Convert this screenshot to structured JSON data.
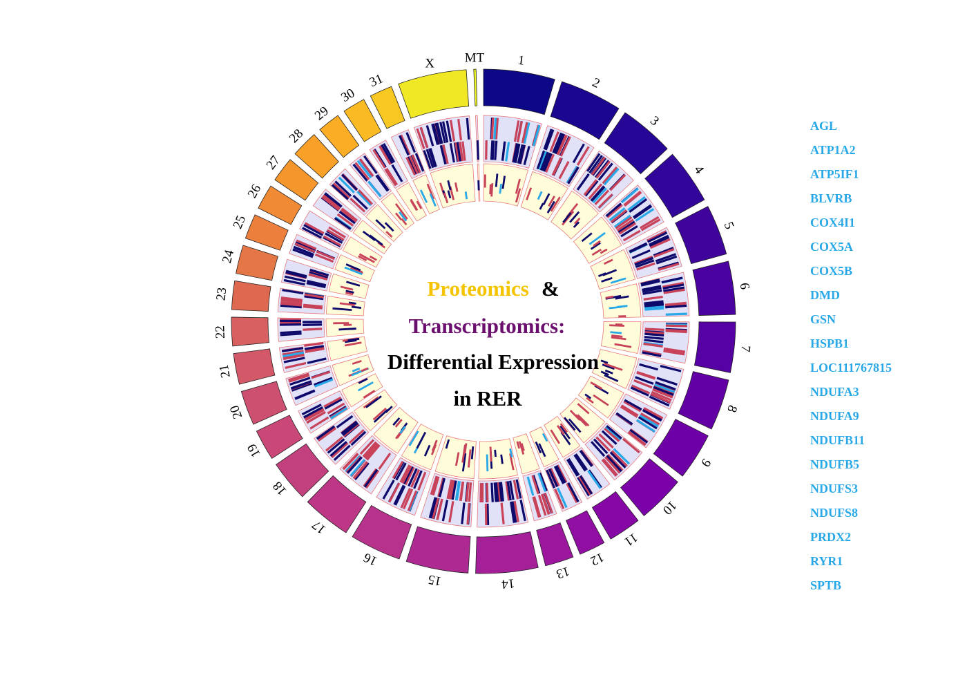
{
  "title": {
    "line1_part1": "Proteomics",
    "line1_part2": "&",
    "line2": "Transcriptomics:",
    "line3": "Differential Expression",
    "line4": "in RER",
    "colors": {
      "proteomics": "#f5c400",
      "amp": "#000000",
      "transcriptomics": "#6a0f6e",
      "rest": "#000000"
    }
  },
  "chart_data": {
    "type": "circos",
    "chromosomes": [
      {
        "name": "1",
        "size": 157,
        "color": "#0d0887"
      },
      {
        "name": "2",
        "size": 137,
        "color": "#1a0690"
      },
      {
        "name": "3",
        "size": 121,
        "color": "#260696"
      },
      {
        "name": "4",
        "size": 121,
        "color": "#32059b"
      },
      {
        "name": "5",
        "size": 111,
        "color": "#3e049c"
      },
      {
        "name": "6",
        "size": 117,
        "color": "#4a02a0"
      },
      {
        "name": "7",
        "size": 111,
        "color": "#5601a4"
      },
      {
        "name": "8",
        "size": 113,
        "color": "#6200a6"
      },
      {
        "name": "9",
        "size": 104,
        "color": "#6e00a8"
      },
      {
        "name": "10",
        "size": 104,
        "color": "#7a02a8"
      },
      {
        "name": "11",
        "size": 72,
        "color": "#8606a6"
      },
      {
        "name": "12",
        "size": 58,
        "color": "#910ea3"
      },
      {
        "name": "13",
        "size": 63,
        "color": "#9c179e"
      },
      {
        "name": "14",
        "size": 137,
        "color": "#a51f99"
      },
      {
        "name": "15",
        "size": 137,
        "color": "#ae2992"
      },
      {
        "name": "16",
        "size": 113,
        "color": "#b6328b"
      },
      {
        "name": "17",
        "size": 107,
        "color": "#bd3786"
      },
      {
        "name": "18",
        "size": 90,
        "color": "#c3407f"
      },
      {
        "name": "19",
        "size": 68,
        "color": "#c94878"
      },
      {
        "name": "20",
        "size": 76,
        "color": "#cd5070"
      },
      {
        "name": "21",
        "size": 68,
        "color": "#d35868"
      },
      {
        "name": "22",
        "size": 63,
        "color": "#d86060"
      },
      {
        "name": "23",
        "size": 63,
        "color": "#df6950"
      },
      {
        "name": "24",
        "size": 63,
        "color": "#e57645"
      },
      {
        "name": "25",
        "size": 55,
        "color": "#ec7f3c"
      },
      {
        "name": "26",
        "size": 55,
        "color": "#f08a35"
      },
      {
        "name": "27",
        "size": 55,
        "color": "#f5962c"
      },
      {
        "name": "28",
        "size": 59,
        "color": "#f8a027"
      },
      {
        "name": "29",
        "size": 50,
        "color": "#faad25"
      },
      {
        "name": "30",
        "size": 50,
        "color": "#f9ba23"
      },
      {
        "name": "31",
        "size": 50,
        "color": "#f7c822"
      },
      {
        "name": "X",
        "size": 151,
        "color": "#f0e824"
      },
      {
        "name": "MT",
        "size": 5,
        "color": "#f0f921"
      }
    ],
    "tracks": [
      {
        "name": "",
        "background": "#e1e1f7",
        "border": "#e8787a"
      },
      {
        "name": "",
        "background": "#fffdd9",
        "border": "#e8787a"
      }
    ],
    "mark_colors": {
      "down": "#0d0a6b",
      "up": "#c8435a",
      "highlight": "#29a8e8"
    },
    "legend_genes": [
      "AGL",
      "ATP1A2",
      "ATP5IF1",
      "BLVRB",
      "COX4I1",
      "COX5A",
      "COX5B",
      "DMD",
      "GSN",
      "HSPB1",
      "LOC111767815",
      "NDUFA3",
      "NDUFA9",
      "NDUFB11",
      "NDUFB5",
      "NDUFS3",
      "NDUFS8",
      "PRDX2",
      "RYR1",
      "SPTB"
    ],
    "legend_color": "#29a8e8"
  }
}
